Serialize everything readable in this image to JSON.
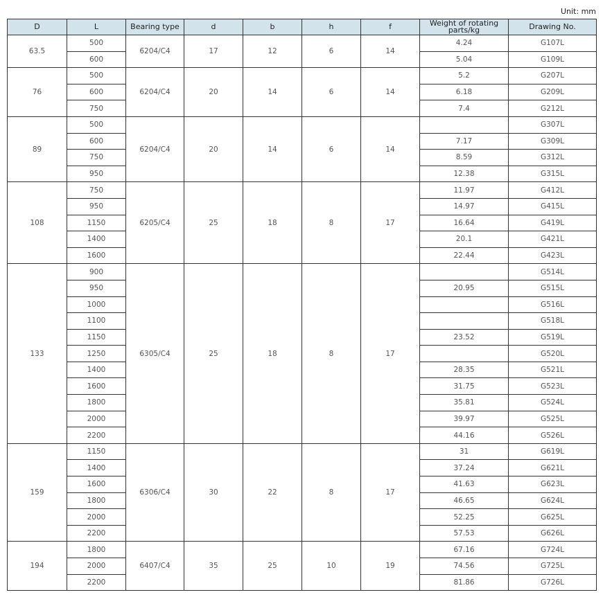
{
  "unit": "Unit: mm",
  "headers": [
    "D",
    "L",
    "Bearing type",
    "d",
    "b",
    "h",
    "f",
    "Weight of rotating parts/kg",
    "Drawing No."
  ],
  "groups": [
    {
      "D": "63.5",
      "bearing": "6204/C4",
      "d": "17",
      "b": "12",
      "h": "6",
      "f": "14",
      "rows": [
        {
          "L": "500",
          "weight": "4.24",
          "drawing": "G107L"
        },
        {
          "L": "600",
          "weight": "5.04",
          "drawing": "G109L"
        }
      ]
    },
    {
      "D": "76",
      "bearing": "6204/C4",
      "d": "20",
      "b": "14",
      "h": "6",
      "f": "14",
      "rows": [
        {
          "L": "500",
          "weight": "5.2",
          "drawing": "G207L"
        },
        {
          "L": "600",
          "weight": "6.18",
          "drawing": "G209L"
        },
        {
          "L": "750",
          "weight": "7.4",
          "drawing": "G212L"
        }
      ]
    },
    {
      "D": "89",
      "bearing": "6204/C4",
      "d": "20",
      "b": "14",
      "h": "6",
      "f": "14",
      "rows": [
        {
          "L": "500",
          "weight": "",
          "drawing": "G307L"
        },
        {
          "L": "600",
          "weight": "7.17",
          "drawing": "G309L"
        },
        {
          "L": "750",
          "weight": "8.59",
          "drawing": "G312L"
        },
        {
          "L": "950",
          "weight": "12.38",
          "drawing": "G315L"
        }
      ]
    },
    {
      "D": "108",
      "bearing": "6205/C4",
      "d": "25",
      "b": "18",
      "h": "8",
      "f": "17",
      "rows": [
        {
          "L": "750",
          "weight": "11.97",
          "drawing": "G412L"
        },
        {
          "L": "950",
          "weight": "14.97",
          "drawing": "G415L"
        },
        {
          "L": "1150",
          "weight": "16.64",
          "drawing": "G419L"
        },
        {
          "L": "1400",
          "weight": "20.1",
          "drawing": "G421L"
        },
        {
          "L": "1600",
          "weight": "22.44",
          "drawing": "G423L"
        }
      ]
    },
    {
      "D": "133",
      "bearing": "6305/C4",
      "d": "25",
      "b": "18",
      "h": "8",
      "f": "17",
      "rows": [
        {
          "L": "900",
          "weight": "",
          "drawing": "G514L"
        },
        {
          "L": "950",
          "weight": "20.95",
          "drawing": "G515L"
        },
        {
          "L": "1000",
          "weight": "",
          "drawing": "G516L"
        },
        {
          "L": "1100",
          "weight": "",
          "drawing": "G518L"
        },
        {
          "L": "1150",
          "weight": "23.52",
          "drawing": "G519L"
        },
        {
          "L": "1250",
          "weight": "",
          "drawing": "G520L"
        },
        {
          "L": "1400",
          "weight": "28.35",
          "drawing": "G521L"
        },
        {
          "L": "1600",
          "weight": "31.75",
          "drawing": "G523L"
        },
        {
          "L": "1800",
          "weight": "35.81",
          "drawing": "G524L"
        },
        {
          "L": "2000",
          "weight": "39.97",
          "drawing": "G525L"
        },
        {
          "L": "2200",
          "weight": "44.16",
          "drawing": "G526L"
        }
      ]
    },
    {
      "D": "159",
      "bearing": "6306/C4",
      "d": "30",
      "b": "22",
      "h": "8",
      "f": "17",
      "rows": [
        {
          "L": "1150",
          "weight": "31",
          "drawing": "G619L"
        },
        {
          "L": "1400",
          "weight": "37.24",
          "drawing": "G621L"
        },
        {
          "L": "1600",
          "weight": "41.63",
          "drawing": "G623L"
        },
        {
          "L": "1800",
          "weight": "46.65",
          "drawing": "G624L"
        },
        {
          "L": "2000",
          "weight": "52.25",
          "drawing": "G625L"
        },
        {
          "L": "2200",
          "weight": "57.53",
          "drawing": "G626L"
        }
      ]
    },
    {
      "D": "194",
      "bearing": "6407/C4",
      "d": "35",
      "b": "25",
      "h": "10",
      "f": "19",
      "rows": [
        {
          "L": "1800",
          "weight": "67.16",
          "drawing": "G724L"
        },
        {
          "L": "2000",
          "weight": "74.56",
          "drawing": "G725L"
        },
        {
          "L": "2200",
          "weight": "81.86",
          "drawing": "G726L"
        }
      ]
    }
  ]
}
